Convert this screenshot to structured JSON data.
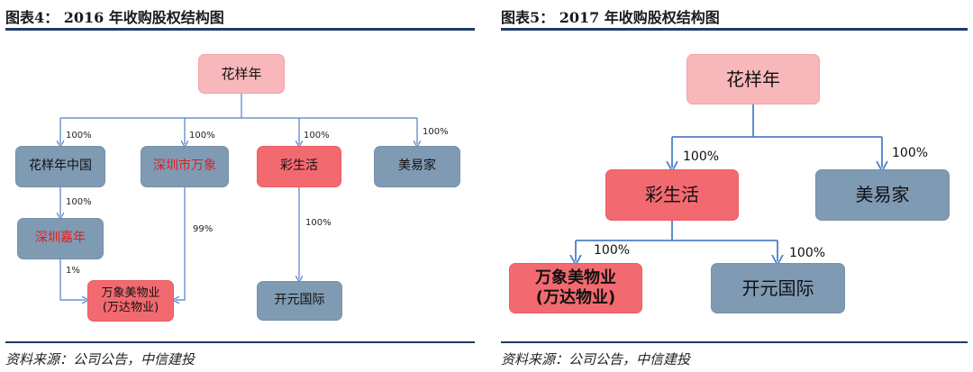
{
  "left": {
    "title": "图表4：  2016 年收购股权结构图",
    "source": "资料来源：公司公告，中信建投",
    "nodes": {
      "huayangnian": "花样年",
      "huayangnian_china": "花样年中国",
      "shenzhen_wanxiang": "深圳市万象",
      "caishenghuo": "彩生活",
      "meiyijia": "美易家",
      "shenzhen_jianian": "深圳嘉年",
      "wanxiang_meiwuye": "万象美物业\n(万达物业)",
      "kaiyuan_guoji": "开元国际"
    },
    "edges": {
      "hyn_china": "100%",
      "hyn_sz_wanxiang": "100%",
      "hyn_csh": "100%",
      "hyn_myj": "100%",
      "china_jianian": "100%",
      "jianian_wxmwy": "1%",
      "sz_wanxiang_wxmwy": "99%",
      "csh_kygj": "100%"
    }
  },
  "right": {
    "title": "图表5：  2017 年收购股权结构图",
    "source": "资料来源：公司公告，中信建投",
    "nodes": {
      "huayangnian": "花样年",
      "caishenghuo": "彩生活",
      "meiyijia": "美易家",
      "wanxiang_meiwuye": "万象美物业\n(万达物业)",
      "kaiyuan_guoji": "开元国际"
    },
    "edges": {
      "hyn_csh": "100%",
      "hyn_myj": "100%",
      "csh_wxmwy": "100%",
      "csh_kygj": "100%"
    }
  }
}
